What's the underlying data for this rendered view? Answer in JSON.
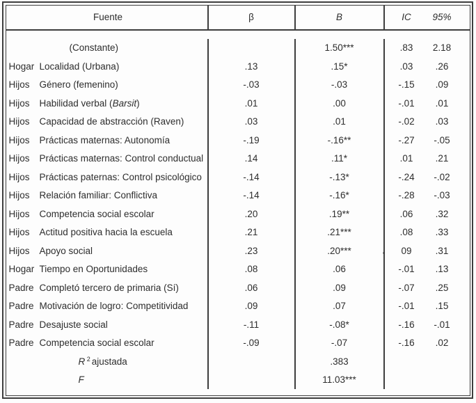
{
  "table": {
    "headers": {
      "fuente": "Fuente",
      "beta": "β",
      "b": "B",
      "ic": "IC",
      "ci_pct": "95%"
    },
    "rows": [
      {
        "kind": "constant",
        "label": "(Constante)",
        "beta": "",
        "b": "1.50***",
        "ic_low": ".83",
        "ic_high": "2.18"
      },
      {
        "kind": "var",
        "cat": "Hogar",
        "label": "Localidad (Urbana)",
        "beta": ".13",
        "b": ".15*",
        "ic_low": ".03",
        "ic_high": ".26"
      },
      {
        "kind": "var",
        "cat": "Hijos",
        "label": "Género (femenino)",
        "beta": "-.03",
        "b": "-.03",
        "ic_low": "-.15",
        "ic_high": ".09"
      },
      {
        "kind": "var",
        "cat": "Hijos",
        "label_parts": [
          {
            "t": "Habilidad verbal ("
          },
          {
            "t": "Barsit",
            "i": true
          },
          {
            "t": ")"
          }
        ],
        "beta": ".01",
        "b": ".00",
        "ic_low": "-.01",
        "ic_high": ".01"
      },
      {
        "kind": "var",
        "cat": "Hijos",
        "label": "Capacidad de abstracción (Raven)",
        "beta": ".03",
        "b": ".01",
        "ic_low": "-.02",
        "ic_high": ".03"
      },
      {
        "kind": "var",
        "cat": "Hijos",
        "label": "Prácticas maternas: Autonomía",
        "beta": "-.19",
        "b": "-.16**",
        "ic_low": "-.27",
        "ic_high": "-.05"
      },
      {
        "kind": "var",
        "cat": "Hijos",
        "label": "Prácticas maternas: Control conductual",
        "beta": ".14",
        "b": ".11*",
        "ic_low": ".01",
        "ic_high": ".21"
      },
      {
        "kind": "var",
        "cat": "Hijos",
        "label": "Prácticas paternas: Control psicológico",
        "beta": "-.14",
        "b": "-.13*",
        "ic_low": "-.24",
        "ic_high": "-.02"
      },
      {
        "kind": "var",
        "cat": "Hijos",
        "label": "Relación familiar: Conflictiva",
        "beta": "-.14",
        "b": "-.16*",
        "ic_low": "-.28",
        "ic_high": "-.03"
      },
      {
        "kind": "var",
        "cat": "Hijos",
        "label": "Competencia social escolar",
        "beta": ".20",
        "b": ".19**",
        "ic_low": ".06",
        "ic_high": ".32"
      },
      {
        "kind": "var",
        "cat": "Hijos",
        "label": "Actitud positiva hacia la escuela",
        "beta": ".21",
        "b": ".21***",
        "ic_low": ".08",
        "ic_high": ".33"
      },
      {
        "kind": "var",
        "cat": "Hijos",
        "label": "Apoyo social",
        "beta": ".23",
        "b": ".20***",
        "ic_low": "09",
        "ic_low_prefix": ".",
        "ic_high": ".31"
      },
      {
        "kind": "var",
        "cat": "Hogar",
        "label": "Tiempo en Oportunidades",
        "beta": ".08",
        "b": ".06",
        "ic_low": "-.01",
        "ic_high": ".13"
      },
      {
        "kind": "var",
        "cat": "Padre",
        "label": "Completó tercero de primaria (Sí)",
        "beta": ".06",
        "b": ".09",
        "ic_low": "-.07",
        "ic_high": ".25"
      },
      {
        "kind": "var",
        "cat": "Padre",
        "label": "Motivación de logro: Competitividad",
        "beta": ".09",
        "b": ".07",
        "ic_low": "-.01",
        "ic_high": ".15"
      },
      {
        "kind": "var",
        "cat": "Padre",
        "label": "Desajuste social",
        "beta": "-.11",
        "b": "-.08*",
        "ic_low": "-.16",
        "ic_high": "-.01"
      },
      {
        "kind": "var",
        "cat": "Padre",
        "label": "Competencia social escolar",
        "beta": "-.09",
        "b": "-.07",
        "ic_low": "-.16",
        "ic_high": ".02"
      },
      {
        "kind": "stat",
        "label_parts": [
          {
            "t": "R",
            "i": true
          },
          {
            "t": "2",
            "sup": true
          },
          {
            "t": "ajustada"
          }
        ],
        "beta": "",
        "b": ".383",
        "ic_low": "",
        "ic_high": ""
      },
      {
        "kind": "stat",
        "label_parts": [
          {
            "t": "F",
            "i": true
          }
        ],
        "beta": "",
        "b": "11.03***",
        "ic_low": "",
        "ic_high": ""
      }
    ]
  },
  "colors": {
    "border": "#3d3d3d",
    "text": "#2d2d2d",
    "background": "#fdfdfd"
  }
}
